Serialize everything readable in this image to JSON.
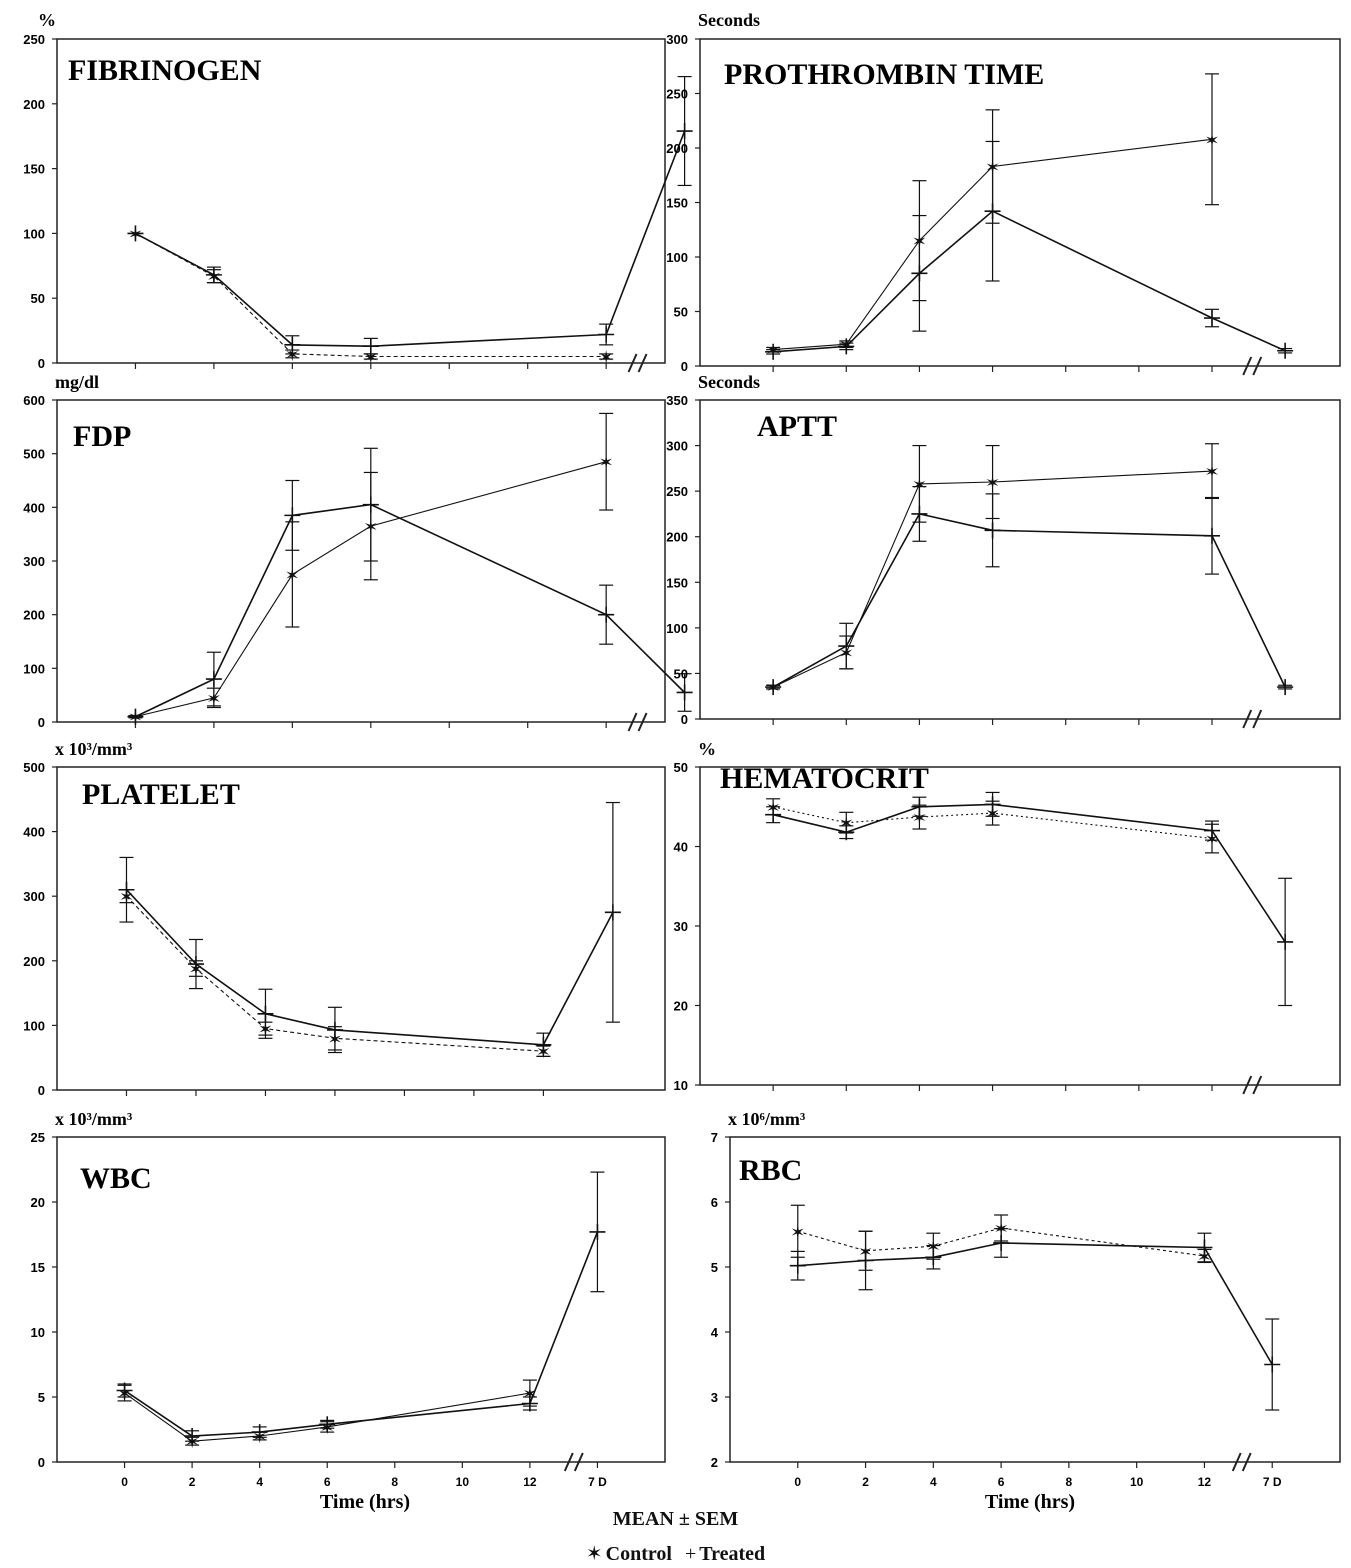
{
  "figure": {
    "xlabel": "Time (hrs)",
    "footer_title": "MEAN ± SEM",
    "legend": {
      "control": "Control",
      "treated": "Treated"
    }
  },
  "chart_data": [
    {
      "id": "fibrinogen",
      "type": "line",
      "title": "FIBRINOGEN",
      "unit": "%",
      "ylim": [
        0,
        250
      ],
      "yticks": [
        0,
        50,
        100,
        150,
        200,
        250
      ],
      "xlim": [
        -2,
        13.5
      ],
      "xticks": [],
      "break_x": 12.8,
      "break_label_x": 12.8,
      "series": [
        {
          "name": "Control",
          "marker": "star",
          "dash": "4,3",
          "x": [
            0,
            2,
            4,
            6,
            12
          ],
          "y": [
            100,
            67,
            7,
            5,
            5
          ],
          "err": [
            0,
            5,
            3,
            2,
            2
          ]
        },
        {
          "name": "Treated",
          "marker": "plus",
          "dash": "",
          "x": [
            0,
            2,
            4,
            6,
            12,
            14
          ],
          "y": [
            100,
            68,
            14,
            13,
            22,
            179
          ],
          "err": [
            0,
            6,
            7,
            6,
            8,
            42
          ]
        }
      ]
    },
    {
      "id": "prothrombin",
      "type": "line",
      "title": "PROTHROMBIN TIME",
      "unit": "Seconds",
      "ylim": [
        0,
        300
      ],
      "yticks": [
        0,
        50,
        100,
        150,
        200,
        250,
        300
      ],
      "xlim": [
        -2,
        15.5
      ],
      "xticks": [],
      "break_x": 13.1,
      "series": [
        {
          "name": "Control",
          "marker": "star",
          "dash": "",
          "x": [
            0,
            2,
            4,
            6,
            12
          ],
          "y": [
            15,
            20,
            115,
            183,
            208
          ],
          "err": [
            2,
            3,
            55,
            52,
            60
          ]
        },
        {
          "name": "Treated",
          "marker": "plus",
          "dash": "",
          "x": [
            0,
            2,
            4,
            6,
            12,
            14
          ],
          "y": [
            13,
            18,
            85,
            142,
            44,
            14
          ],
          "err": [
            2,
            3,
            53,
            64,
            8,
            2
          ]
        }
      ]
    },
    {
      "id": "fdp",
      "type": "line",
      "title": "FDP",
      "unit": "mg/dl",
      "ylim": [
        0,
        600
      ],
      "yticks": [
        0,
        100,
        200,
        300,
        400,
        500,
        600
      ],
      "xlim": [
        -2,
        13.5
      ],
      "xticks": [],
      "break_x": 12.8,
      "series": [
        {
          "name": "Control",
          "marker": "star",
          "dash": "",
          "x": [
            0,
            2,
            4,
            6,
            12
          ],
          "y": [
            10,
            45,
            275,
            365,
            485
          ],
          "err": [
            2,
            18,
            98,
            100,
            90
          ]
        },
        {
          "name": "Treated",
          "marker": "plus",
          "dash": "",
          "x": [
            0,
            2,
            4,
            6,
            12,
            14
          ],
          "y": [
            10,
            80,
            385,
            405,
            200,
            55
          ],
          "err": [
            2,
            50,
            65,
            105,
            55,
            35
          ]
        }
      ]
    },
    {
      "id": "aptt",
      "type": "line",
      "title": "APTT",
      "unit": "Seconds",
      "ylim": [
        0,
        350
      ],
      "yticks": [
        0,
        50,
        100,
        150,
        200,
        250,
        300,
        350
      ],
      "xlim": [
        -2,
        15.5
      ],
      "xticks": [],
      "break_x": 13.1,
      "series": [
        {
          "name": "Control",
          "marker": "star",
          "dash": "",
          "x": [
            0,
            2,
            4,
            6,
            12
          ],
          "y": [
            35,
            73,
            258,
            260,
            272
          ],
          "err": [
            2,
            18,
            42,
            40,
            30
          ]
        },
        {
          "name": "Treated",
          "marker": "plus",
          "dash": "",
          "x": [
            0,
            2,
            4,
            6,
            12,
            14
          ],
          "y": [
            35,
            80,
            225,
            207,
            201,
            35
          ],
          "err": [
            2,
            25,
            30,
            40,
            42,
            2
          ]
        }
      ]
    },
    {
      "id": "platelet",
      "type": "line",
      "title": "PLATELET",
      "unit": "x 10³/mm³",
      "ylim": [
        0,
        500
      ],
      "yticks": [
        0,
        100,
        200,
        300,
        400,
        500
      ],
      "xlim": [
        -2,
        15.5
      ],
      "xticks": [],
      "series": [
        {
          "name": "Control",
          "marker": "star",
          "dash": "4,3",
          "x": [
            0,
            2,
            4,
            6,
            12
          ],
          "y": [
            300,
            188,
            95,
            80,
            60
          ],
          "err": [
            10,
            12,
            10,
            18,
            8
          ]
        },
        {
          "name": "Treated",
          "marker": "plus",
          "dash": "",
          "x": [
            0,
            2,
            4,
            6,
            12,
            14
          ],
          "y": [
            310,
            195,
            118,
            93,
            70,
            275
          ],
          "err": [
            50,
            38,
            38,
            35,
            18,
            170
          ]
        }
      ]
    },
    {
      "id": "hematocrit",
      "type": "line",
      "title": "HEMATOCRIT",
      "unit": "%",
      "ylim": [
        10,
        50
      ],
      "yticks": [
        10,
        20,
        30,
        40,
        50
      ],
      "xlim": [
        -2,
        15.5
      ],
      "xticks": [],
      "break_x": 13.1,
      "series": [
        {
          "name": "Control",
          "marker": "star",
          "dash": "2,3",
          "x": [
            0,
            2,
            4,
            6,
            12
          ],
          "y": [
            45,
            43,
            43.7,
            44.2,
            41
          ],
          "err": [
            1,
            1.3,
            1.5,
            1.5,
            1.8
          ]
        },
        {
          "name": "Treated",
          "marker": "plus",
          "dash": "",
          "x": [
            0,
            2,
            4,
            6,
            12,
            14
          ],
          "y": [
            44,
            41.8,
            45,
            45.3,
            42,
            28
          ],
          "err": [
            1,
            0.8,
            1.2,
            1.5,
            1.2,
            8
          ]
        }
      ]
    },
    {
      "id": "wbc",
      "type": "line",
      "title": "WBC",
      "unit": "x 10³/mm³",
      "ylim": [
        0,
        25
      ],
      "yticks": [
        0,
        5,
        10,
        15,
        20,
        25
      ],
      "xlim": [
        -2,
        16
      ],
      "xticks": [
        0,
        2,
        4,
        6,
        8,
        10,
        12
      ],
      "extra_tick": {
        "x": 14,
        "label": "7 D"
      },
      "break_x": 13.3,
      "series": [
        {
          "name": "Control",
          "marker": "star",
          "dash": "",
          "x": [
            0,
            2,
            4,
            6,
            12
          ],
          "y": [
            5.3,
            1.6,
            2,
            2.7,
            5.3
          ],
          "err": [
            0.6,
            0.3,
            0.3,
            0.4,
            1
          ]
        },
        {
          "name": "Treated",
          "marker": "plus",
          "dash": "",
          "x": [
            0,
            2,
            4,
            6,
            12,
            14
          ],
          "y": [
            5.5,
            2,
            2.3,
            2.9,
            4.5,
            17.7
          ],
          "err": [
            0.5,
            0.4,
            0.4,
            0.3,
            0.5,
            4.6
          ]
        }
      ]
    },
    {
      "id": "rbc",
      "type": "line",
      "title": "RBC",
      "unit": "x 10⁶/mm³",
      "ylim": [
        2,
        7
      ],
      "yticks": [
        2,
        3,
        4,
        5,
        6,
        7
      ],
      "xlim": [
        -2,
        16
      ],
      "xticks": [
        0,
        2,
        4,
        6,
        8,
        10,
        12
      ],
      "extra_tick": {
        "x": 14,
        "label": "7 D"
      },
      "break_x": 13.1,
      "series": [
        {
          "name": "Control",
          "marker": "star",
          "dash": "3,3",
          "x": [
            0,
            2,
            4,
            6,
            12
          ],
          "y": [
            5.55,
            5.25,
            5.32,
            5.6,
            5.17
          ],
          "err": [
            0.4,
            0.3,
            0.2,
            0.2,
            0.1
          ]
        },
        {
          "name": "Treated",
          "marker": "plus",
          "dash": "",
          "x": [
            0,
            2,
            4,
            6,
            12,
            14
          ],
          "y": [
            5.02,
            5.1,
            5.15,
            5.37,
            5.3,
            3.5
          ],
          "err": [
            0.22,
            0.45,
            0.18,
            0.22,
            0.22,
            0.7
          ]
        }
      ]
    }
  ]
}
